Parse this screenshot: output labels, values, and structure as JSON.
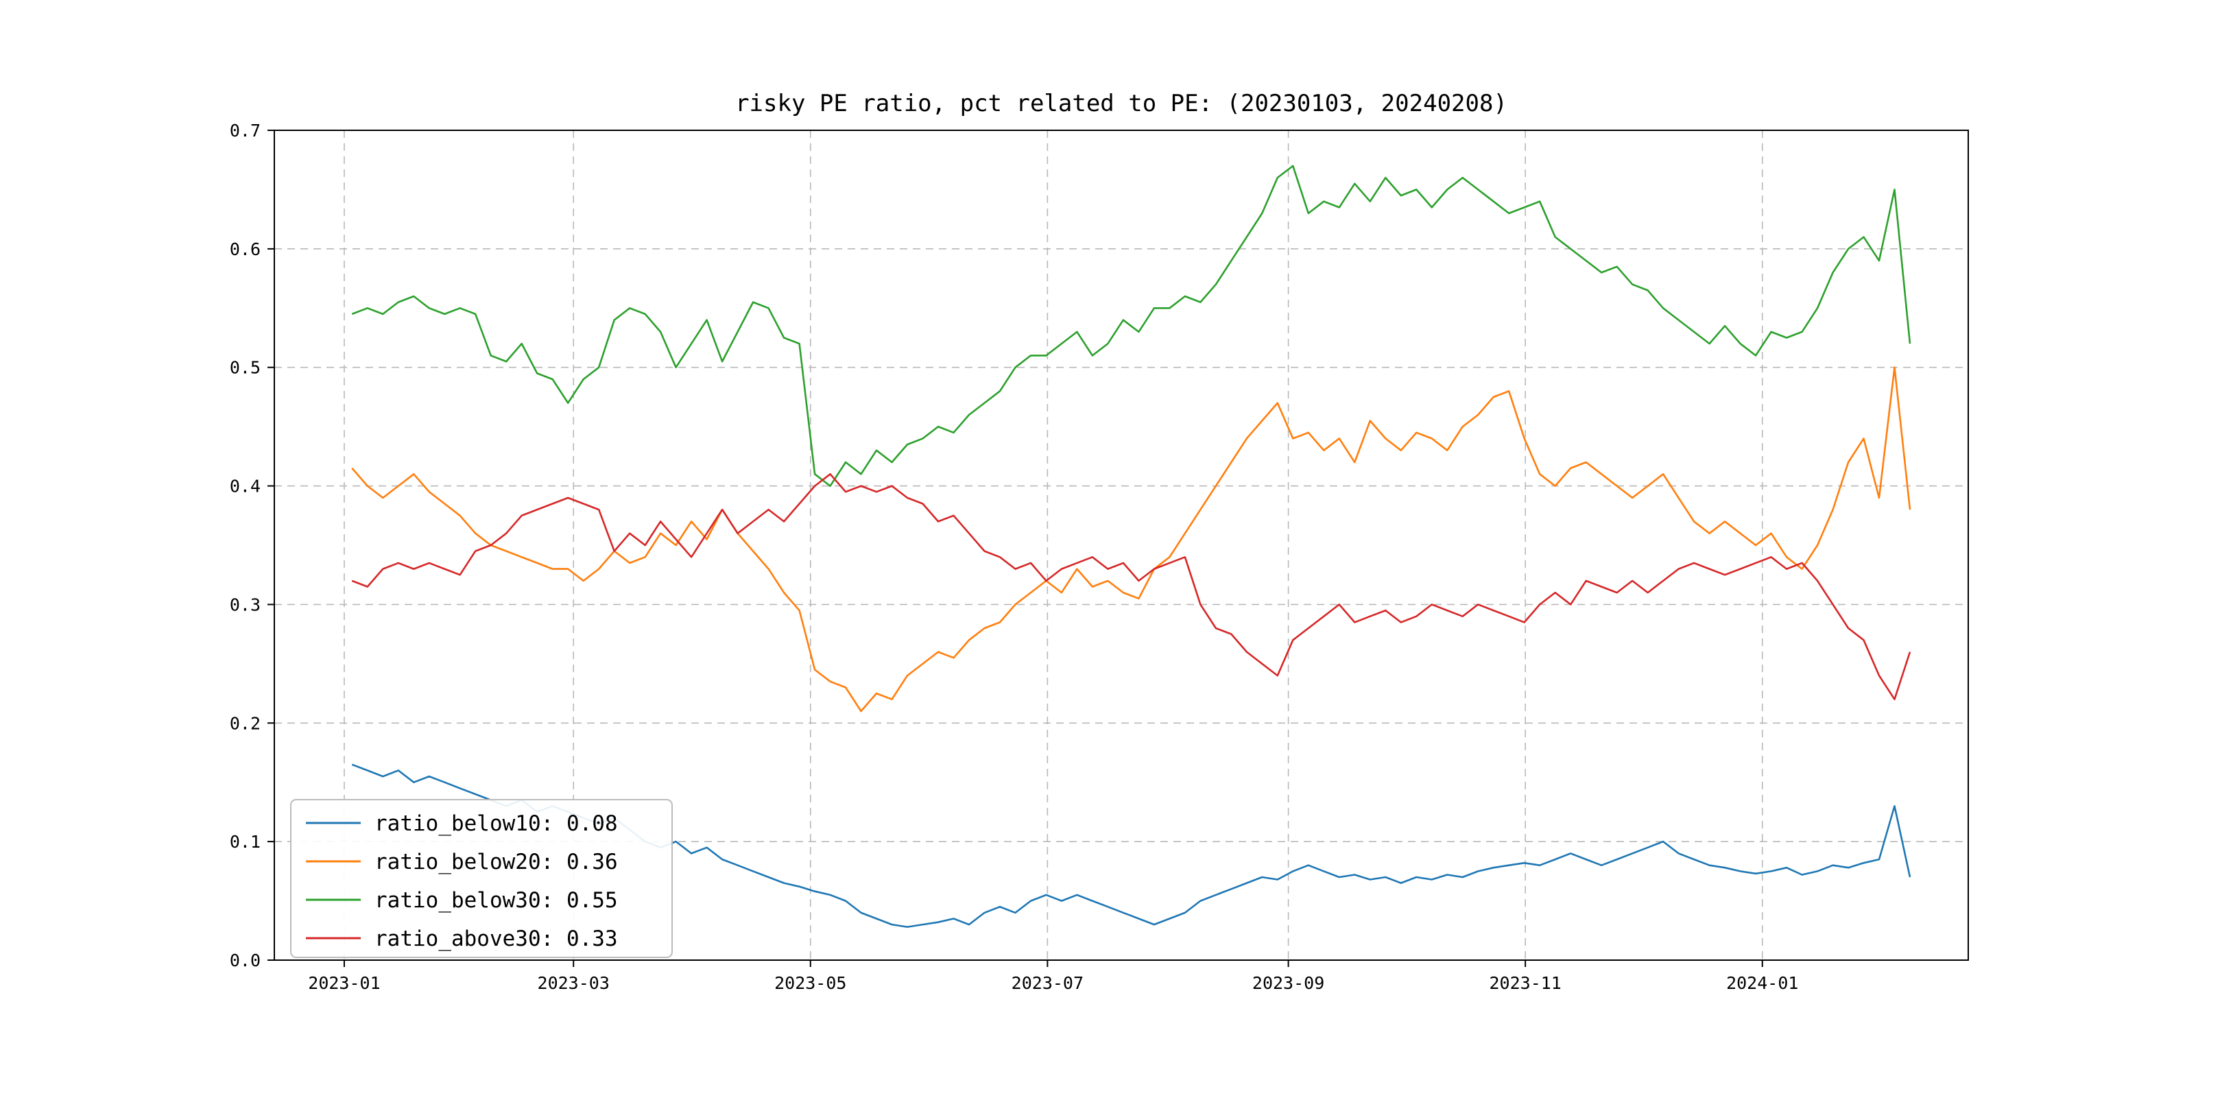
{
  "title": "risky PE ratio, pct related to PE: (20230103, 20240208)",
  "chart_data": {
    "type": "line",
    "title": "risky PE ratio, pct related to PE: (20230103, 20240208)",
    "xlabel": "",
    "ylabel": "",
    "ylim": [
      0.0,
      0.7
    ],
    "grid": true,
    "grid_style": "dashed",
    "grid_color": "#b8b8b8",
    "legend_position": "lower left",
    "x_axis_days_range": [
      -18,
      418
    ],
    "x_start_day": 2,
    "x_end_day": 403,
    "x_ticks": [
      {
        "day": 0,
        "label": "2023-01"
      },
      {
        "day": 59,
        "label": "2023-03"
      },
      {
        "day": 120,
        "label": "2023-05"
      },
      {
        "day": 181,
        "label": "2023-07"
      },
      {
        "day": 243,
        "label": "2023-09"
      },
      {
        "day": 304,
        "label": "2023-11"
      },
      {
        "day": 365,
        "label": "2024-01"
      }
    ],
    "y_ticks": [
      {
        "v": 0.0,
        "label": "0.0"
      },
      {
        "v": 0.1,
        "label": "0.1"
      },
      {
        "v": 0.2,
        "label": "0.2"
      },
      {
        "v": 0.3,
        "label": "0.3"
      },
      {
        "v": 0.4,
        "label": "0.4"
      },
      {
        "v": 0.5,
        "label": "0.5"
      },
      {
        "v": 0.6,
        "label": "0.6"
      },
      {
        "v": 0.7,
        "label": "0.7"
      }
    ],
    "series": [
      {
        "name": "ratio_below10: 0.08",
        "color": "#1f77b4",
        "values": [
          0.165,
          0.16,
          0.155,
          0.16,
          0.15,
          0.155,
          0.15,
          0.145,
          0.14,
          0.135,
          0.13,
          0.135,
          0.125,
          0.13,
          0.125,
          0.12,
          0.115,
          0.12,
          0.11,
          0.1,
          0.095,
          0.1,
          0.09,
          0.095,
          0.085,
          0.08,
          0.075,
          0.07,
          0.065,
          0.062,
          0.058,
          0.055,
          0.05,
          0.04,
          0.035,
          0.03,
          0.028,
          0.03,
          0.032,
          0.035,
          0.03,
          0.04,
          0.045,
          0.04,
          0.05,
          0.055,
          0.05,
          0.055,
          0.05,
          0.045,
          0.04,
          0.035,
          0.03,
          0.035,
          0.04,
          0.05,
          0.055,
          0.06,
          0.065,
          0.07,
          0.068,
          0.075,
          0.08,
          0.075,
          0.07,
          0.072,
          0.068,
          0.07,
          0.065,
          0.07,
          0.068,
          0.072,
          0.07,
          0.075,
          0.078,
          0.08,
          0.082,
          0.08,
          0.085,
          0.09,
          0.085,
          0.08,
          0.085,
          0.09,
          0.095,
          0.1,
          0.09,
          0.085,
          0.08,
          0.078,
          0.075,
          0.073,
          0.075,
          0.078,
          0.072,
          0.075,
          0.08,
          0.078,
          0.082,
          0.085,
          0.13,
          0.07
        ]
      },
      {
        "name": "ratio_below20: 0.36",
        "color": "#ff7f0e",
        "values": [
          0.415,
          0.4,
          0.39,
          0.4,
          0.41,
          0.395,
          0.385,
          0.375,
          0.36,
          0.35,
          0.345,
          0.34,
          0.335,
          0.33,
          0.33,
          0.32,
          0.33,
          0.345,
          0.335,
          0.34,
          0.36,
          0.35,
          0.37,
          0.355,
          0.38,
          0.36,
          0.345,
          0.33,
          0.31,
          0.295,
          0.245,
          0.235,
          0.23,
          0.21,
          0.225,
          0.22,
          0.24,
          0.25,
          0.26,
          0.255,
          0.27,
          0.28,
          0.285,
          0.3,
          0.31,
          0.32,
          0.31,
          0.33,
          0.315,
          0.32,
          0.31,
          0.305,
          0.33,
          0.34,
          0.36,
          0.38,
          0.4,
          0.42,
          0.44,
          0.455,
          0.47,
          0.44,
          0.445,
          0.43,
          0.44,
          0.42,
          0.455,
          0.44,
          0.43,
          0.445,
          0.44,
          0.43,
          0.45,
          0.46,
          0.475,
          0.48,
          0.44,
          0.41,
          0.4,
          0.415,
          0.42,
          0.41,
          0.4,
          0.39,
          0.4,
          0.41,
          0.39,
          0.37,
          0.36,
          0.37,
          0.36,
          0.35,
          0.36,
          0.34,
          0.33,
          0.35,
          0.38,
          0.42,
          0.44,
          0.39,
          0.5,
          0.38
        ]
      },
      {
        "name": "ratio_below30: 0.55",
        "color": "#2ca02c",
        "values": [
          0.545,
          0.55,
          0.545,
          0.555,
          0.56,
          0.55,
          0.545,
          0.55,
          0.545,
          0.51,
          0.505,
          0.52,
          0.495,
          0.49,
          0.47,
          0.49,
          0.5,
          0.54,
          0.55,
          0.545,
          0.53,
          0.5,
          0.52,
          0.54,
          0.505,
          0.53,
          0.555,
          0.55,
          0.525,
          0.52,
          0.41,
          0.4,
          0.42,
          0.41,
          0.43,
          0.42,
          0.435,
          0.44,
          0.45,
          0.445,
          0.46,
          0.47,
          0.48,
          0.5,
          0.51,
          0.51,
          0.52,
          0.53,
          0.51,
          0.52,
          0.54,
          0.53,
          0.55,
          0.55,
          0.56,
          0.555,
          0.57,
          0.59,
          0.61,
          0.63,
          0.66,
          0.67,
          0.63,
          0.64,
          0.635,
          0.655,
          0.64,
          0.66,
          0.645,
          0.65,
          0.635,
          0.65,
          0.66,
          0.65,
          0.64,
          0.63,
          0.635,
          0.64,
          0.61,
          0.6,
          0.59,
          0.58,
          0.585,
          0.57,
          0.565,
          0.55,
          0.54,
          0.53,
          0.52,
          0.535,
          0.52,
          0.51,
          0.53,
          0.525,
          0.53,
          0.55,
          0.58,
          0.6,
          0.61,
          0.59,
          0.65,
          0.52
        ]
      },
      {
        "name": "ratio_above30: 0.33",
        "color": "#d62728",
        "values": [
          0.32,
          0.315,
          0.33,
          0.335,
          0.33,
          0.335,
          0.33,
          0.325,
          0.345,
          0.35,
          0.36,
          0.375,
          0.38,
          0.385,
          0.39,
          0.385,
          0.38,
          0.345,
          0.36,
          0.35,
          0.37,
          0.355,
          0.34,
          0.36,
          0.38,
          0.36,
          0.37,
          0.38,
          0.37,
          0.385,
          0.4,
          0.41,
          0.395,
          0.4,
          0.395,
          0.4,
          0.39,
          0.385,
          0.37,
          0.375,
          0.36,
          0.345,
          0.34,
          0.33,
          0.335,
          0.32,
          0.33,
          0.335,
          0.34,
          0.33,
          0.335,
          0.32,
          0.33,
          0.335,
          0.34,
          0.3,
          0.28,
          0.275,
          0.26,
          0.25,
          0.24,
          0.27,
          0.28,
          0.29,
          0.3,
          0.285,
          0.29,
          0.295,
          0.285,
          0.29,
          0.3,
          0.295,
          0.29,
          0.3,
          0.295,
          0.29,
          0.285,
          0.3,
          0.31,
          0.3,
          0.32,
          0.315,
          0.31,
          0.32,
          0.31,
          0.32,
          0.33,
          0.335,
          0.33,
          0.325,
          0.33,
          0.335,
          0.34,
          0.33,
          0.335,
          0.32,
          0.3,
          0.28,
          0.27,
          0.24,
          0.22,
          0.26
        ]
      }
    ]
  }
}
